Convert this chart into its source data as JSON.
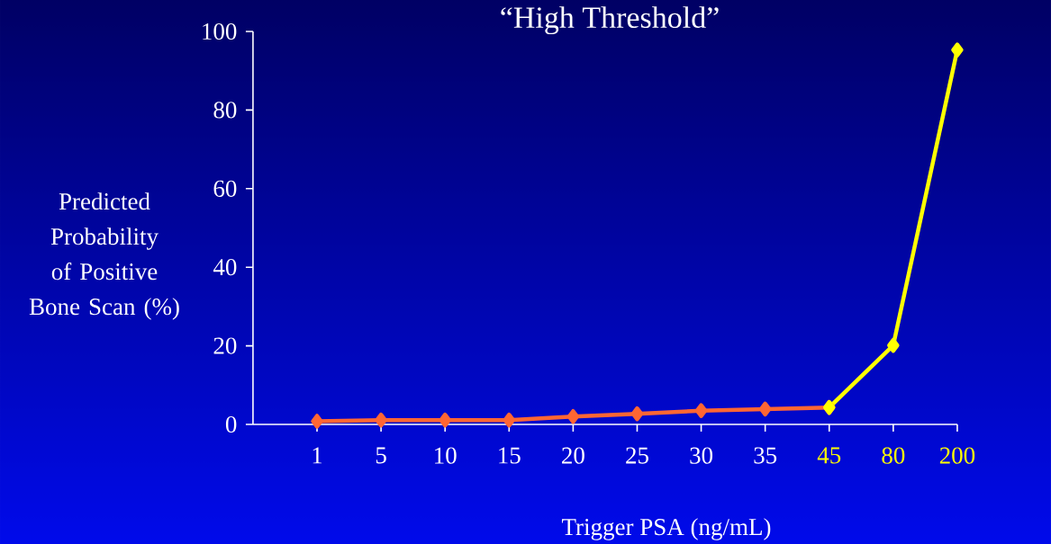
{
  "chart_data": {
    "type": "line",
    "title": "“High Threshold”",
    "xlabel": "Trigger PSA (ng/mL)",
    "ylabel": "Predicted Probability of Positive Bone Scan (%)",
    "categories": [
      "1",
      "5",
      "10",
      "15",
      "20",
      "25",
      "30",
      "35",
      "45",
      "80",
      "200"
    ],
    "series": [
      {
        "color": "#ff6633",
        "values": [
          0.8,
          1.1,
          1.1,
          1.1,
          2.0,
          2.7,
          3.5,
          3.9,
          4.3,
          null,
          null
        ]
      },
      {
        "color": "#ffff00",
        "values": [
          null,
          null,
          null,
          null,
          null,
          null,
          null,
          null,
          4.3,
          20.1,
          95.3
        ]
      }
    ],
    "ylim": [
      0,
      100
    ],
    "yticks": [
      0,
      20,
      40,
      60,
      80,
      100
    ],
    "marker": "diamond",
    "line_style": "solid",
    "grid": false
  }
}
